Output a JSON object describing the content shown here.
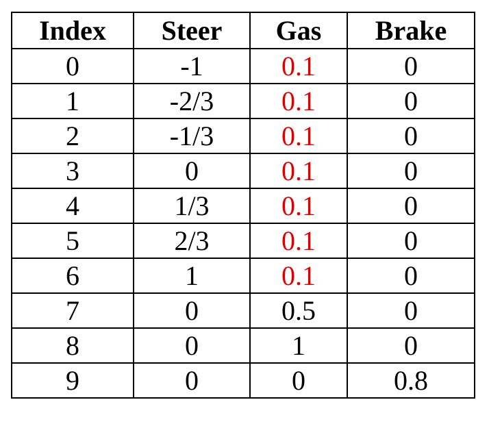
{
  "table": {
    "headers": [
      "Index",
      "Steer",
      "Gas",
      "Brake"
    ],
    "rows": [
      [
        "0",
        "-1",
        "0.1",
        "0"
      ],
      [
        "1",
        "-2/3",
        "0.1",
        "0"
      ],
      [
        "2",
        "-1/3",
        "0.1",
        "0"
      ],
      [
        "3",
        "0",
        "0.1",
        "0"
      ],
      [
        "4",
        "1/3",
        "0.1",
        "0"
      ],
      [
        "5",
        "2/3",
        "0.1",
        "0"
      ],
      [
        "6",
        "1",
        "0.1",
        "0"
      ],
      [
        "7",
        "0",
        "0.5",
        "0"
      ],
      [
        "8",
        "0",
        "1",
        "0"
      ],
      [
        "9",
        "0",
        "0",
        "0.8"
      ]
    ],
    "highlight_color": "#e00000",
    "highlighted_gas_rows": [
      0,
      1,
      2,
      3,
      4,
      5,
      6
    ]
  }
}
